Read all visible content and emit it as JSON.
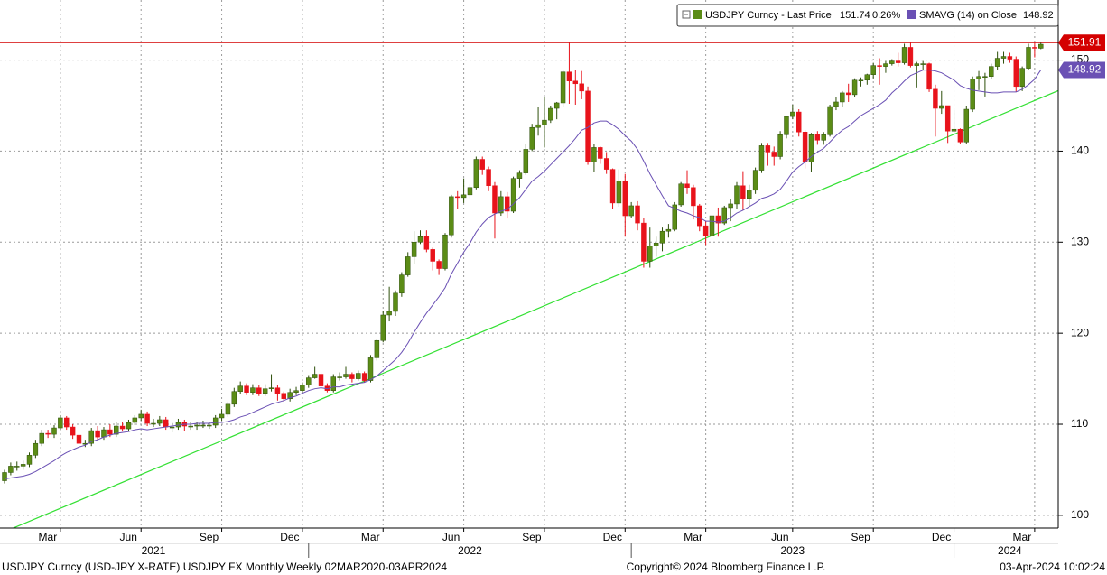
{
  "chart_data": {
    "type": "candlestick",
    "xlim": [
      -0.73,
      169.8
    ],
    "ylim": [
      98.6,
      156.6
    ],
    "yticks": [
      100,
      110,
      120,
      130,
      140,
      150
    ],
    "xticks": [
      {
        "value": 9,
        "label": "Mar"
      },
      {
        "value": 22,
        "label": "Jun"
      },
      {
        "value": 35,
        "label": "Sep"
      },
      {
        "value": 48,
        "label": "Dec"
      },
      {
        "value": 61,
        "label": "Mar"
      },
      {
        "value": 74,
        "label": "Jun"
      },
      {
        "value": 87,
        "label": "Sep"
      },
      {
        "value": 100,
        "label": "Dec"
      },
      {
        "value": 113,
        "label": "Mar"
      },
      {
        "value": 127,
        "label": "Jun"
      },
      {
        "value": 140,
        "label": "Sep"
      },
      {
        "value": 153,
        "label": "Dec"
      },
      {
        "value": 166,
        "label": "Mar"
      }
    ],
    "year_ticks": [
      {
        "value": 24,
        "label": "2021"
      },
      {
        "value": 75,
        "label": "2022"
      },
      {
        "value": 127,
        "label": "2023"
      },
      {
        "value": 162,
        "label": "2024"
      }
    ],
    "year_bounds": [
      49,
      101,
      153
    ],
    "grid": true,
    "price_line": {
      "value": 151.91,
      "color": "#d40000"
    },
    "trend_line": {
      "from": [
        0,
        98.2
      ],
      "to": [
        170,
        146.7
      ],
      "color": "#33e033"
    },
    "change_label": "0.26%",
    "series": [
      {
        "name": "USDJPY Curncy - Last Price",
        "color": "#5b8c16",
        "color_down": "#e8131b",
        "open": [
          103.8,
          104.7,
          105.4,
          105.4,
          105.6,
          106.6,
          107.9,
          109.0,
          108.9,
          109.6,
          110.7,
          109.7,
          108.8,
          107.9,
          107.9,
          109.3,
          108.6,
          109.4,
          108.9,
          109.8,
          109.5,
          110.2,
          110.7,
          111.1,
          110.1,
          110.1,
          110.5,
          109.7,
          109.7,
          110.2,
          109.8,
          109.8,
          109.9,
          109.9,
          109.9,
          110.7,
          111.1,
          112.2,
          113.6,
          114.2,
          113.5,
          114.0,
          113.4,
          113.9,
          114.0,
          113.4,
          112.8,
          113.5,
          113.7,
          114.3,
          115.1,
          115.5,
          114.2,
          113.7,
          115.2,
          115.2,
          115.5,
          115.0,
          115.6,
          114.8,
          117.3,
          119.2,
          122.0,
          122.4,
          124.4,
          126.4,
          128.4,
          130.0,
          130.6,
          129.2,
          127.9,
          127.1,
          130.8,
          135.0,
          134.9,
          135.2,
          136.0,
          139.1,
          138.0,
          136.2,
          133.2,
          135.0,
          133.4,
          137.0,
          137.6,
          140.2,
          142.6,
          142.9,
          143.4,
          144.7,
          145.3,
          148.7,
          147.7,
          147.4,
          146.6,
          138.8,
          140.4,
          139.2,
          138.0,
          134.3,
          136.7,
          132.9,
          134.0,
          132.1,
          127.9,
          129.6,
          129.9,
          131.2,
          131.4,
          134.1,
          136.4,
          136.0,
          134.0,
          131.8,
          130.7,
          132.9,
          132.1,
          133.8,
          134.2,
          136.2,
          134.8,
          135.7,
          137.9,
          140.6,
          139.9,
          139.4,
          141.8,
          143.8,
          144.3,
          142.1,
          138.8,
          141.8,
          141.2,
          141.8,
          144.9,
          145.4,
          146.4,
          146.2,
          147.8,
          147.8,
          148.4,
          149.4,
          149.3,
          149.6,
          149.9,
          149.7,
          151.4,
          149.4,
          149.6,
          149.6,
          146.8,
          144.7,
          145.0,
          142.2,
          142.4,
          141.0,
          144.6,
          147.9,
          148.2,
          148.2,
          149.3,
          150.2,
          150.4,
          150.1,
          147.1,
          149.1,
          151.4,
          151.3
        ],
        "high": [
          105.0,
          105.8,
          105.9,
          106.0,
          106.9,
          108.3,
          109.4,
          109.4,
          109.9,
          111.0,
          110.9,
          110.0,
          109.1,
          108.3,
          109.6,
          109.8,
          109.7,
          110.0,
          110.2,
          110.3,
          110.5,
          111.0,
          111.6,
          111.4,
          110.6,
          110.9,
          110.8,
          110.2,
          110.6,
          110.5,
          110.2,
          110.3,
          110.4,
          110.3,
          111.0,
          111.7,
          112.5,
          114.0,
          114.7,
          114.5,
          114.4,
          114.3,
          114.4,
          115.5,
          114.3,
          113.6,
          113.9,
          114.1,
          114.6,
          115.4,
          116.3,
          115.7,
          114.5,
          115.5,
          115.7,
          116.3,
          115.7,
          115.9,
          115.8,
          117.6,
          119.4,
          122.4,
          125.1,
          124.7,
          126.7,
          128.9,
          131.2,
          131.3,
          131.3,
          129.4,
          128.1,
          131.0,
          135.2,
          135.6,
          137.0,
          136.4,
          139.4,
          139.4,
          138.3,
          136.6,
          135.6,
          135.5,
          137.2,
          137.9,
          140.8,
          143.0,
          144.9,
          145.9,
          145.0,
          145.4,
          148.9,
          151.9,
          148.9,
          148.8,
          147.1,
          140.8,
          140.5,
          139.9,
          138.1,
          138.0,
          137.5,
          134.4,
          134.5,
          132.7,
          131.6,
          130.6,
          131.6,
          132.0,
          134.4,
          136.6,
          137.9,
          136.3,
          134.2,
          132.3,
          133.2,
          133.8,
          134.0,
          134.7,
          136.6,
          137.8,
          136.3,
          138.2,
          140.9,
          140.9,
          140.5,
          142.2,
          143.9,
          145.1,
          144.6,
          142.3,
          142.0,
          142.2,
          142.1,
          145.1,
          145.9,
          146.6,
          147.4,
          148.0,
          148.1,
          148.5,
          149.7,
          150.2,
          149.9,
          150.1,
          150.8,
          151.8,
          151.9,
          149.8,
          149.9,
          149.7,
          147.3,
          146.6,
          145.0,
          144.5,
          142.5,
          145.0,
          148.2,
          148.8,
          148.6,
          149.6,
          150.9,
          150.9,
          150.8,
          150.4,
          149.3,
          151.8,
          151.9,
          151.91
        ],
        "low": [
          103.5,
          104.4,
          104.9,
          105.0,
          105.3,
          106.3,
          107.6,
          108.5,
          108.5,
          109.4,
          109.4,
          108.4,
          107.5,
          107.5,
          107.6,
          108.3,
          108.3,
          108.6,
          108.6,
          109.2,
          109.2,
          109.9,
          110.4,
          109.8,
          109.7,
          109.8,
          109.4,
          109.1,
          109.4,
          109.3,
          109.4,
          109.4,
          109.6,
          109.5,
          109.6,
          110.4,
          110.8,
          111.9,
          113.3,
          113.2,
          113.2,
          113.1,
          113.1,
          113.6,
          112.6,
          112.5,
          112.5,
          113.2,
          113.4,
          114.0,
          115.0,
          113.9,
          113.5,
          113.5,
          114.8,
          115.0,
          114.6,
          114.8,
          114.6,
          114.6,
          117.0,
          119.0,
          121.3,
          121.9,
          124.0,
          126.2,
          127.6,
          129.8,
          128.9,
          126.9,
          126.4,
          126.9,
          130.5,
          133.6,
          134.3,
          134.8,
          135.8,
          137.4,
          135.6,
          130.4,
          132.9,
          132.6,
          133.2,
          136.0,
          137.4,
          140.0,
          141.7,
          140.4,
          143.1,
          143.5,
          144.9,
          145.2,
          145.1,
          145.7,
          138.5,
          137.7,
          138.6,
          137.5,
          133.6,
          133.9,
          130.6,
          132.7,
          131.3,
          127.2,
          127.2,
          128.4,
          129.0,
          130.5,
          131.2,
          133.9,
          135.3,
          132.5,
          131.2,
          129.7,
          130.4,
          130.6,
          131.9,
          132.3,
          133.6,
          133.5,
          134.0,
          135.3,
          137.6,
          138.4,
          138.4,
          139.1,
          141.4,
          143.5,
          141.6,
          138.1,
          137.7,
          140.7,
          140.7,
          141.6,
          144.5,
          144.9,
          145.4,
          145.9,
          147.1,
          147.3,
          148.0,
          147.3,
          148.6,
          149.4,
          149.3,
          149.5,
          149.2,
          147.0,
          148.9,
          146.5,
          141.6,
          144.1,
          140.9,
          141.7,
          140.8,
          140.8,
          144.3,
          146.7,
          146.0,
          147.9,
          148.9,
          149.6,
          149.7,
          146.5,
          146.6,
          148.9,
          150.3,
          151.2
        ],
        "close": [
          104.7,
          105.4,
          105.4,
          105.6,
          106.6,
          107.9,
          109.0,
          108.9,
          109.6,
          110.7,
          109.7,
          108.8,
          107.9,
          107.9,
          109.3,
          108.6,
          109.4,
          108.9,
          109.8,
          109.5,
          110.2,
          110.7,
          111.1,
          110.1,
          110.1,
          110.5,
          109.7,
          109.7,
          110.2,
          109.8,
          109.8,
          109.9,
          109.9,
          109.9,
          110.7,
          111.1,
          112.2,
          113.6,
          114.2,
          113.5,
          114.0,
          113.4,
          113.9,
          114.0,
          113.4,
          112.8,
          113.5,
          113.7,
          114.3,
          115.1,
          115.5,
          114.2,
          113.7,
          115.2,
          115.2,
          115.5,
          115.0,
          115.6,
          114.8,
          117.3,
          119.2,
          122.0,
          122.4,
          124.4,
          126.4,
          128.4,
          130.0,
          130.6,
          129.2,
          127.9,
          127.1,
          130.8,
          135.0,
          134.9,
          135.2,
          136.0,
          139.1,
          138.0,
          136.2,
          133.2,
          135.0,
          133.4,
          137.0,
          137.6,
          140.2,
          142.6,
          142.9,
          143.4,
          144.7,
          145.3,
          148.7,
          147.7,
          147.4,
          146.6,
          138.8,
          140.4,
          139.2,
          138.0,
          134.3,
          136.7,
          132.9,
          134.0,
          132.1,
          127.9,
          129.6,
          129.9,
          131.2,
          131.4,
          134.1,
          136.4,
          136.0,
          134.0,
          131.8,
          130.7,
          132.9,
          132.1,
          133.8,
          134.2,
          136.2,
          134.8,
          135.7,
          137.9,
          140.6,
          139.9,
          139.4,
          141.8,
          143.8,
          144.3,
          142.1,
          138.8,
          141.8,
          141.2,
          141.8,
          144.9,
          145.4,
          146.4,
          146.2,
          147.8,
          147.8,
          148.4,
          149.4,
          149.3,
          149.6,
          149.9,
          149.7,
          151.4,
          149.4,
          149.6,
          149.6,
          146.8,
          144.7,
          145.0,
          142.2,
          142.4,
          141.0,
          144.6,
          147.9,
          148.2,
          148.2,
          149.3,
          150.2,
          150.4,
          150.1,
          147.1,
          149.1,
          151.4,
          151.3,
          151.74
        ]
      },
      {
        "name": "SMAVG (14)  on Close",
        "color": "#6a50b4",
        "values": [
          104.0,
          104.1,
          104.2,
          104.3,
          104.5,
          104.8,
          105.2,
          105.6,
          106.0,
          106.5,
          106.9,
          107.2,
          107.5,
          107.7,
          108.1,
          108.3,
          108.6,
          108.8,
          109.0,
          109.1,
          109.2,
          109.4,
          109.5,
          109.4,
          109.5,
          109.6,
          109.7,
          109.8,
          109.9,
          110.0,
          110.0,
          110.1,
          110.1,
          110.1,
          110.2,
          110.2,
          110.3,
          110.5,
          110.8,
          111.0,
          111.3,
          111.6,
          111.9,
          112.2,
          112.4,
          112.6,
          112.9,
          113.1,
          113.4,
          113.7,
          113.9,
          114.0,
          113.9,
          114.1,
          114.1,
          114.3,
          114.4,
          114.5,
          114.6,
          114.9,
          115.3,
          115.9,
          116.5,
          117.1,
          117.9,
          118.9,
          120.1,
          121.2,
          122.2,
          123.1,
          124.0,
          125.0,
          126.5,
          127.7,
          128.9,
          129.9,
          131.1,
          132.0,
          132.7,
          133.1,
          133.4,
          133.6,
          134.2,
          134.9,
          135.8,
          136.7,
          137.2,
          137.8,
          138.5,
          139.2,
          139.9,
          140.6,
          141.4,
          142.3,
          142.6,
          143.1,
          143.3,
          143.3,
          142.9,
          142.4,
          141.7,
          141.1,
          140.2,
          138.9,
          137.5,
          136.3,
          135.1,
          134.0,
          133.7,
          133.4,
          133.2,
          132.9,
          132.7,
          132.3,
          132.3,
          132.2,
          132.3,
          132.7,
          133.2,
          133.5,
          133.9,
          134.3,
          134.8,
          135.0,
          135.3,
          135.8,
          136.7,
          137.7,
          138.3,
          138.8,
          139.4,
          139.9,
          140.3,
          141.0,
          141.7,
          142.3,
          142.7,
          143.3,
          143.9,
          144.3,
          144.7,
          145.1,
          145.6,
          146.4,
          147.0,
          147.7,
          148.3,
          148.6,
          148.9,
          148.9,
          148.8,
          148.6,
          148.2,
          147.8,
          147.2,
          146.9,
          146.7,
          146.6,
          146.5,
          146.4,
          146.4,
          146.5,
          146.5,
          146.5,
          146.8,
          147.3,
          147.9,
          148.92
        ]
      }
    ],
    "footer": {
      "left": "USDJPY Curncy (USD-JPY X-RATE) USDJPY FX Monthly  Weekly 02MAR2020-03APR2024",
      "center": "Copyright© 2024 Bloomberg Finance L.P.",
      "right": "03-Apr-2024 10:02:24"
    }
  }
}
